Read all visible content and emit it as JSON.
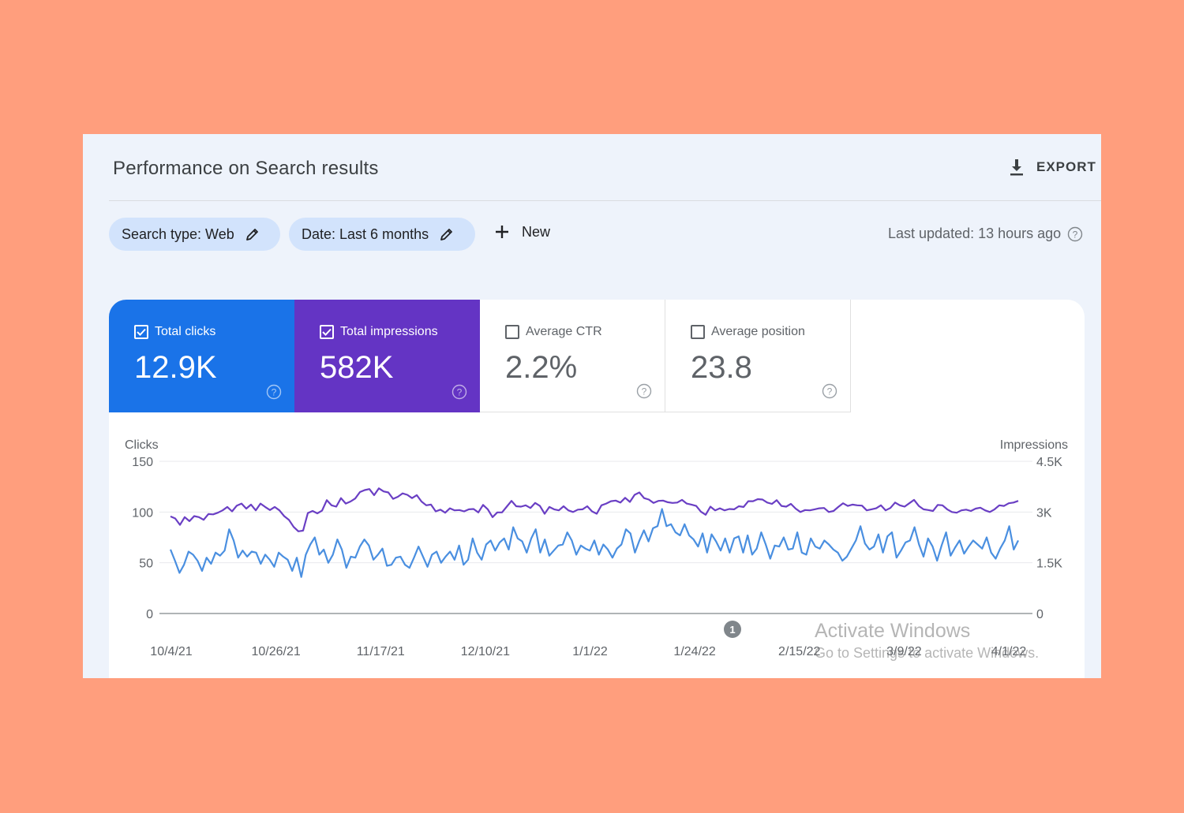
{
  "header": {
    "title": "Performance on Search results",
    "export_label": "EXPORT"
  },
  "filters": {
    "search_type": "Search type: Web",
    "date": "Date: Last 6 months",
    "new_label": "New",
    "last_updated": "Last updated: 13 hours ago"
  },
  "metrics": [
    {
      "label": "Total clicks",
      "value": "12.9K",
      "checked": true,
      "color": "#1a73e8"
    },
    {
      "label": "Total impressions",
      "value": "582K",
      "checked": true,
      "color": "#6434c4"
    },
    {
      "label": "Average CTR",
      "value": "2.2%",
      "checked": false
    },
    {
      "label": "Average position",
      "value": "23.8",
      "checked": false
    }
  ],
  "annotation_marker": "1",
  "watermark": {
    "line1": "Activate Windows",
    "line2": "Go to Settings to activate Windows."
  },
  "chart_data": {
    "type": "line",
    "y_left_label": "Clicks",
    "y_right_label": "Impressions",
    "y_left_ticks": [
      "0",
      "50",
      "100",
      "150"
    ],
    "y_right_ticks": [
      "0",
      "1.5K",
      "3K",
      "4.5K"
    ],
    "ylim_left": [
      0,
      150
    ],
    "ylim_right": [
      0,
      4500
    ],
    "x_tick_labels": [
      "10/4/21",
      "10/26/21",
      "11/17/21",
      "12/10/21",
      "1/1/22",
      "1/24/22",
      "2/15/22",
      "3/9/22",
      "4/1/22"
    ],
    "grid": true,
    "series": [
      {
        "name": "Clicks",
        "axis": "left",
        "color": "#4a8fe0",
        "values": [
          63,
          52,
          40,
          48,
          61,
          58,
          52,
          42,
          55,
          49,
          60,
          57,
          62,
          83,
          72,
          55,
          62,
          56,
          61,
          60,
          49,
          58,
          53,
          46,
          60,
          56,
          53,
          42,
          55,
          36,
          58,
          68,
          75,
          58,
          63,
          50,
          58,
          73,
          63,
          45,
          56,
          55,
          66,
          73,
          67,
          53,
          58,
          64,
          47,
          48,
          55,
          56,
          48,
          45,
          55,
          66,
          56,
          46,
          58,
          61,
          50,
          56,
          61,
          53,
          67,
          48,
          53,
          74,
          60,
          53,
          68,
          72,
          62,
          70,
          74,
          63,
          85,
          74,
          71,
          60,
          74,
          83,
          60,
          73,
          57,
          62,
          67,
          68,
          80,
          72,
          58,
          67,
          64,
          62,
          72,
          58,
          68,
          63,
          55,
          64,
          68,
          83,
          79,
          60,
          72,
          82,
          71,
          84,
          86,
          103,
          86,
          88,
          80,
          77,
          88,
          77,
          73,
          66,
          79,
          60,
          78,
          71,
          62,
          74,
          60,
          74,
          76,
          60,
          77,
          58,
          64,
          80,
          68,
          54,
          67,
          66,
          75,
          63,
          64,
          80,
          60,
          58,
          74,
          66,
          64,
          72,
          68,
          63,
          60,
          52,
          56,
          64,
          72,
          86,
          69,
          63,
          66,
          78,
          60,
          76,
          80,
          55,
          62,
          70,
          72,
          85,
          68,
          56,
          74,
          66,
          52,
          67,
          80,
          57,
          65,
          72,
          59,
          66,
          72,
          68,
          64,
          75,
          60,
          54,
          64,
          72,
          86,
          63,
          72
        ]
      },
      {
        "name": "Impressions",
        "axis": "right",
        "color": "#6a3fc4",
        "values": [
          2870,
          2810,
          2620,
          2850,
          2730,
          2880,
          2850,
          2770,
          2940,
          2930,
          2980,
          3050,
          3150,
          3020,
          3190,
          3250,
          3100,
          3220,
          3050,
          3250,
          3150,
          3060,
          3150,
          3050,
          2880,
          2770,
          2560,
          2430,
          2450,
          2970,
          3030,
          2960,
          3040,
          3350,
          3200,
          3160,
          3410,
          3250,
          3310,
          3400,
          3590,
          3650,
          3680,
          3500,
          3700,
          3610,
          3580,
          3390,
          3450,
          3550,
          3510,
          3410,
          3500,
          3310,
          3200,
          3220,
          3020,
          3070,
          2980,
          3110,
          3050,
          3060,
          3020,
          3080,
          3090,
          2990,
          3210,
          3080,
          2850,
          2990,
          2990,
          3160,
          3330,
          3170,
          3160,
          3200,
          3120,
          3270,
          3180,
          2950,
          3150,
          3080,
          3050,
          3170,
          3050,
          3000,
          3070,
          3080,
          3170,
          3020,
          2950,
          3200,
          3250,
          3320,
          3340,
          3280,
          3420,
          3300,
          3510,
          3580,
          3410,
          3370,
          3270,
          3330,
          3340,
          3290,
          3270,
          3280,
          3360,
          3250,
          3220,
          3180,
          3010,
          2920,
          3160,
          3050,
          3110,
          3050,
          3090,
          3080,
          3170,
          3150,
          3320,
          3320,
          3380,
          3370,
          3280,
          3240,
          3350,
          3180,
          3160,
          3240,
          3100,
          3000,
          3060,
          3050,
          3080,
          3110,
          3120,
          3000,
          3030,
          3150,
          3260,
          3180,
          3220,
          3200,
          3190,
          3050,
          3080,
          3110,
          3200,
          3050,
          3120,
          3280,
          3200,
          3160,
          3260,
          3360,
          3180,
          3080,
          3060,
          3030,
          3210,
          3200,
          3080,
          3000,
          2980,
          3050,
          3070,
          3030,
          3100,
          3130,
          3050,
          3000,
          3080,
          3200,
          3180,
          3260,
          3280,
          3330
        ]
      }
    ]
  }
}
